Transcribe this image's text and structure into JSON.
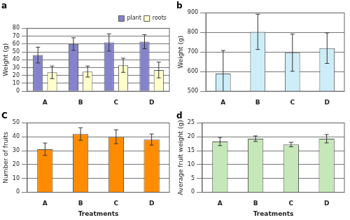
{
  "chart_data": [
    {
      "type": "bar",
      "title": "a",
      "y_label": "Weight (g)",
      "categories": [
        "A",
        "B",
        "C",
        "D"
      ],
      "series": [
        {
          "name": "plant",
          "color": "#8484cc",
          "values": [
            46,
            60,
            62,
            63
          ],
          "errors": [
            10,
            8,
            11,
            9
          ]
        },
        {
          "name": "roots",
          "color": "#ffffcc",
          "values": [
            24,
            25,
            33,
            27
          ],
          "errors": [
            8,
            7,
            9,
            10
          ]
        }
      ],
      "ylim": [
        0,
        80
      ],
      "yticks": [
        0,
        10,
        20,
        30,
        40,
        50,
        60,
        70,
        80
      ],
      "grid": true,
      "legend": "top-right"
    },
    {
      "type": "bar",
      "title": "b",
      "y_label": "Weight (g)",
      "categories": [
        "A",
        "B",
        "C",
        "D"
      ],
      "values": [
        590,
        803,
        697,
        720
      ],
      "errors": [
        118,
        90,
        95,
        78
      ],
      "color": "#cdeef8",
      "ylim": [
        500,
        900
      ],
      "yticks": [
        500,
        600,
        700,
        800,
        900
      ],
      "grid": true
    },
    {
      "type": "bar",
      "title": "C",
      "y_label": "Number of fruits",
      "x_label": "Treatments",
      "categories": [
        "A",
        "B",
        "C",
        "D"
      ],
      "values": [
        31,
        42,
        40,
        38
      ],
      "errors": [
        4.5,
        4.5,
        5,
        4
      ],
      "color": "#ff8c00",
      "ylim": [
        0,
        50
      ],
      "yticks": [
        0,
        10,
        20,
        30,
        40,
        50
      ],
      "grid": true
    },
    {
      "type": "bar",
      "title": "d",
      "y_label": "Average fruit weight (g)",
      "x_label": "Treatments",
      "categories": [
        "A",
        "B",
        "C",
        "D"
      ],
      "values": [
        18.3,
        19.3,
        17.2,
        19.3
      ],
      "errors": [
        1.5,
        1,
        0.8,
        1.5
      ],
      "color": "#c6e8b8",
      "ylim": [
        0,
        25
      ],
      "yticks": [
        0,
        5,
        10,
        15,
        20,
        25
      ],
      "grid": true
    }
  ]
}
